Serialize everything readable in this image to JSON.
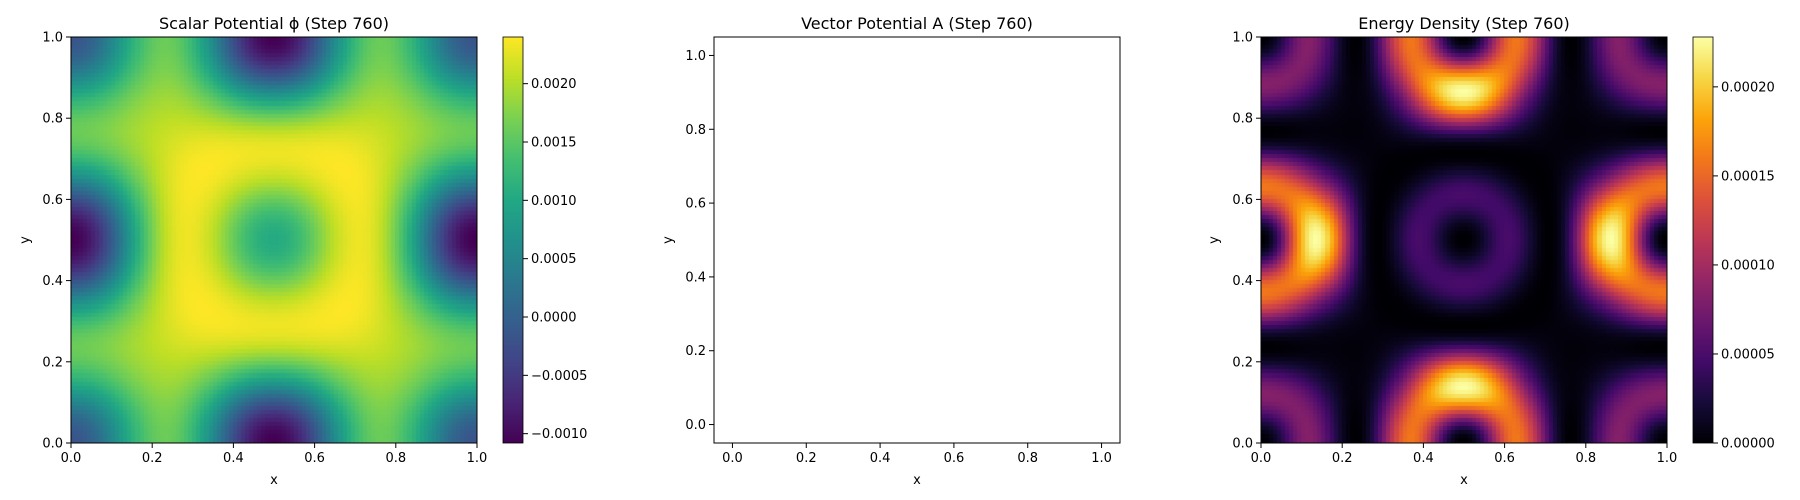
{
  "chart_data": [
    {
      "type": "heatmap",
      "title": "Scalar Potential ϕ (Step 760)",
      "xlabel": "x",
      "ylabel": "y",
      "xlim": [
        0,
        1
      ],
      "ylim": [
        0,
        1
      ],
      "x_ticks": [
        "0.0",
        "0.2",
        "0.4",
        "0.6",
        "0.8",
        "1.0"
      ],
      "y_ticks": [
        "0.0",
        "0.2",
        "0.4",
        "0.6",
        "0.8",
        "1.0"
      ],
      "colormap": "viridis",
      "colorbar": {
        "range": [
          -0.00108,
          0.0024
        ],
        "ticks": [
          {
            "value": -0.001,
            "label": "−0.0010"
          },
          {
            "value": -0.0005,
            "label": "−0.0005"
          },
          {
            "value": 0.0,
            "label": "0.0000"
          },
          {
            "value": 0.0005,
            "label": "0.0005"
          },
          {
            "value": 0.001,
            "label": "0.0010"
          },
          {
            "value": 0.0015,
            "label": "0.0015"
          },
          {
            "value": 0.002,
            "label": "0.0020"
          }
        ]
      },
      "grid": false,
      "peaks": [
        {
          "x": 0.3,
          "y": 0.7,
          "value": 0.0024
        },
        {
          "x": 0.7,
          "y": 0.7,
          "value": 0.0024
        },
        {
          "x": 0.3,
          "y": 0.3,
          "value": 0.0024
        },
        {
          "x": 0.7,
          "y": 0.3,
          "value": 0.0024
        }
      ],
      "minima": [
        {
          "x": 0.5,
          "y": 0.0,
          "value": -0.00108
        },
        {
          "x": 0.5,
          "y": 1.0,
          "value": -0.00108
        },
        {
          "x": 0.0,
          "y": 0.5,
          "value": -0.00108
        },
        {
          "x": 1.0,
          "y": 0.5,
          "value": -0.00108
        }
      ],
      "center_value": 0.0006
    },
    {
      "type": "empty",
      "title": "Vector Potential A (Step 760)",
      "xlabel": "x",
      "ylabel": "y",
      "xlim": [
        -0.05,
        1.05
      ],
      "ylim": [
        -0.05,
        1.05
      ],
      "x_ticks": [
        "0.0",
        "0.2",
        "0.4",
        "0.6",
        "0.8",
        "1.0"
      ],
      "y_ticks": [
        "0.0",
        "0.2",
        "0.4",
        "0.6",
        "0.8",
        "1.0"
      ],
      "grid": false
    },
    {
      "type": "heatmap",
      "title": "Energy Density (Step 760)",
      "xlabel": "x",
      "ylabel": "y",
      "xlim": [
        0,
        1
      ],
      "ylim": [
        0,
        1
      ],
      "x_ticks": [
        "0.0",
        "0.2",
        "0.4",
        "0.6",
        "0.8",
        "1.0"
      ],
      "y_ticks": [
        "0.0",
        "0.2",
        "0.4",
        "0.6",
        "0.8",
        "1.0"
      ],
      "colormap": "inferno",
      "colorbar": {
        "range": [
          0,
          0.000228
        ],
        "ticks": [
          {
            "value": 0.0,
            "label": "0.00000"
          },
          {
            "value": 5e-05,
            "label": "0.00005"
          },
          {
            "value": 0.0001,
            "label": "0.00010"
          },
          {
            "value": 0.00015,
            "label": "0.00015"
          },
          {
            "value": 0.0002,
            "label": "0.00020"
          }
        ]
      },
      "grid": false,
      "hotspots": [
        {
          "x": 0.35,
          "y": 0.8
        },
        {
          "x": 0.65,
          "y": 0.8
        },
        {
          "x": 0.2,
          "y": 0.65
        },
        {
          "x": 0.8,
          "y": 0.65
        },
        {
          "x": 0.2,
          "y": 0.35
        },
        {
          "x": 0.8,
          "y": 0.35
        },
        {
          "x": 0.35,
          "y": 0.2
        },
        {
          "x": 0.65,
          "y": 0.2
        }
      ],
      "peak_value": 0.000228
    }
  ]
}
